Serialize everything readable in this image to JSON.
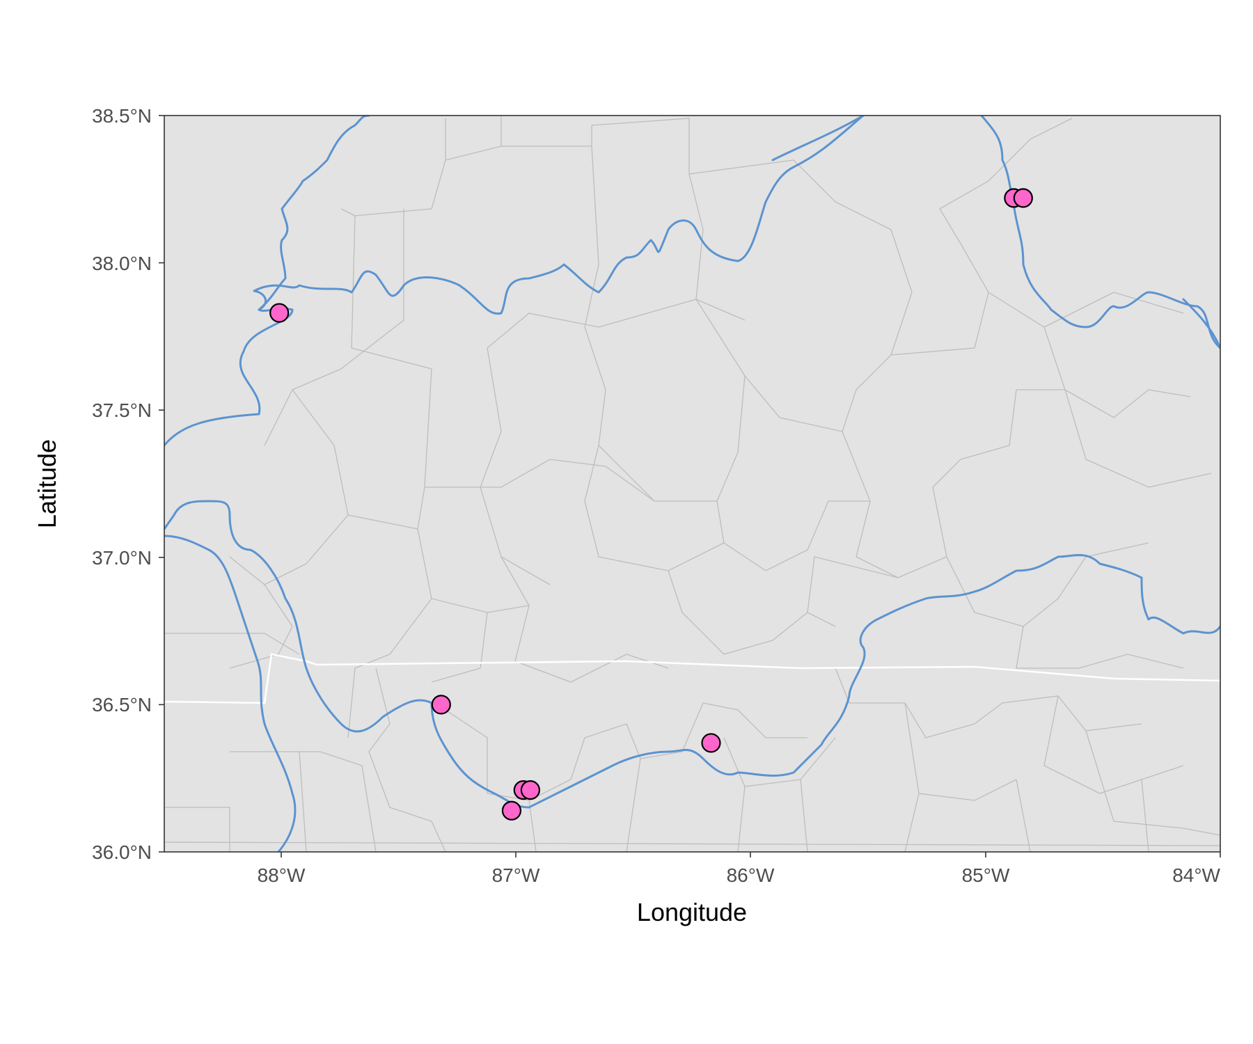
{
  "chart_data": {
    "type": "scatter",
    "title": "",
    "xlabel": "Longitude",
    "ylabel": "Latitude",
    "xlim": [
      -88.5,
      -84.0
    ],
    "ylim": [
      36.0,
      38.5
    ],
    "x_ticks": [
      {
        "value": -88,
        "label": "88°W"
      },
      {
        "value": -87,
        "label": "87°W"
      },
      {
        "value": -86,
        "label": "86°W"
      },
      {
        "value": -85,
        "label": "85°W"
      },
      {
        "value": -84,
        "label": "84°W"
      }
    ],
    "y_ticks": [
      {
        "value": 36.0,
        "label": "36.0°N"
      },
      {
        "value": 36.5,
        "label": "36.5°N"
      },
      {
        "value": 37.0,
        "label": "37.0°N"
      },
      {
        "value": 37.5,
        "label": "37.5°N"
      },
      {
        "value": 38.0,
        "label": "38.0°N"
      },
      {
        "value": 38.5,
        "label": "38.5°N"
      }
    ],
    "grid": false,
    "legend": "none",
    "points": [
      {
        "x": -88.01,
        "y": 37.83
      },
      {
        "x": -87.32,
        "y": 36.5
      },
      {
        "x": -86.97,
        "y": 36.21
      },
      {
        "x": -86.94,
        "y": 36.21
      },
      {
        "x": -87.02,
        "y": 36.14
      },
      {
        "x": -86.17,
        "y": 36.37
      },
      {
        "x": -84.88,
        "y": 38.22
      },
      {
        "x": -84.84,
        "y": 38.22
      }
    ]
  },
  "colors": {
    "panel_background": "#e3e3e3",
    "river": "#5b93cf",
    "county_border": "#bdbdbd",
    "state_border": "#ffffff",
    "point_fill": "#ff66cc",
    "point_outline": "#000000"
  }
}
